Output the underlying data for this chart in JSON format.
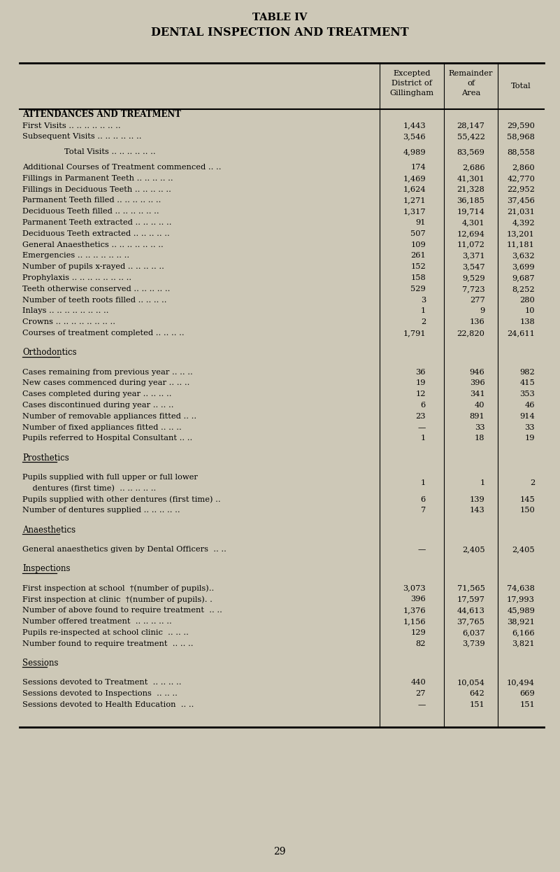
{
  "title1": "TABLE IV",
  "title2": "DENTAL INSPECTION AND TREATMENT",
  "bg_color": "#cdc8b7",
  "rows": [
    {
      "type": "colheader"
    },
    {
      "type": "section_bold",
      "label": "ATTENDANCES AND TREATMENT"
    },
    {
      "type": "data",
      "label": "First Visits .. .. .. .. .. .. ..",
      "v1": "1,443",
      "v2": "28,147",
      "v3": "29,590"
    },
    {
      "type": "data",
      "label": "Subsequent Visits .. .. .. .. .. ..",
      "v1": "3,546",
      "v2": "55,422",
      "v3": "58,968"
    },
    {
      "type": "blank_half"
    },
    {
      "type": "data_c",
      "label": "Total Visits .. .. .. .. .. ..",
      "v1": "4,989",
      "v2": "83,569",
      "v3": "88,558"
    },
    {
      "type": "blank_half"
    },
    {
      "type": "data",
      "label": "Additional Courses of Treatment commenced .. ..",
      "v1": "174",
      "v2": "2,686",
      "v3": "2,860"
    },
    {
      "type": "data",
      "label": "Fillings in Parmanent Teeth .. .. .. .. ..",
      "v1": "1,469",
      "v2": "41,301",
      "v3": "42,770"
    },
    {
      "type": "data",
      "label": "Fillings in Deciduous Teeth .. .. .. .. ..",
      "v1": "1,624",
      "v2": "21,328",
      "v3": "22,952"
    },
    {
      "type": "data",
      "label": "Parmanent Teeth filled .. .. .. .. .. ..",
      "v1": "1,271",
      "v2": "36,185",
      "v3": "37,456"
    },
    {
      "type": "data",
      "label": "Deciduous Teeth filled .. .. .. .. .. ..",
      "v1": "1,317",
      "v2": "19,714",
      "v3": "21,031"
    },
    {
      "type": "data",
      "label": "Parmanent Teeth extracted .. .. .. .. ..",
      "v1": "91",
      "v2": "4,301",
      "v3": "4,392"
    },
    {
      "type": "data",
      "label": "Deciduous Teeth extracted .. .. .. .. ..",
      "v1": "507",
      "v2": "12,694",
      "v3": "13,201"
    },
    {
      "type": "data",
      "label": "General Anaesthetics .. .. .. .. .. .. ..",
      "v1": "109",
      "v2": "11,072",
      "v3": "11,181"
    },
    {
      "type": "data",
      "label": "Emergencies .. .. .. .. .. .. ..",
      "v1": "261",
      "v2": "3,371",
      "v3": "3,632"
    },
    {
      "type": "data",
      "label": "Number of pupils x-rayed .. .. .. .. ..",
      "v1": "152",
      "v2": "3,547",
      "v3": "3,699"
    },
    {
      "type": "data",
      "label": "Prophylaxis .. .. .. .. .. .. .. ..",
      "v1": "158",
      "v2": "9,529",
      "v3": "9,687"
    },
    {
      "type": "data",
      "label": "Teeth otherwise conserved .. .. .. .. ..",
      "v1": "529",
      "v2": "7,723",
      "v3": "8,252"
    },
    {
      "type": "data",
      "label": "Number of teeth roots filled .. .. .. ..",
      "v1": "3",
      "v2": "277",
      "v3": "280"
    },
    {
      "type": "data",
      "label": "Inlays .. .. .. .. .. .. .. ..",
      "v1": "1",
      "v2": "9",
      "v3": "10"
    },
    {
      "type": "data",
      "label": "Crowns .. .. .. .. .. .. .. ..",
      "v1": "2",
      "v2": "136",
      "v3": "138"
    },
    {
      "type": "data",
      "label": "Courses of treatment completed .. .. .. ..",
      "v1": "1,791",
      "v2": "22,820",
      "v3": "24,611"
    },
    {
      "type": "blank"
    },
    {
      "type": "section",
      "label": "Orthodontics"
    },
    {
      "type": "blank"
    },
    {
      "type": "data",
      "label": "Cases remaining from previous year .. .. ..",
      "v1": "36",
      "v2": "946",
      "v3": "982"
    },
    {
      "type": "data",
      "label": "New cases commenced during year .. .. ..",
      "v1": "19",
      "v2": "396",
      "v3": "415"
    },
    {
      "type": "data",
      "label": "Cases completed during year .. .. .. ..",
      "v1": "12",
      "v2": "341",
      "v3": "353"
    },
    {
      "type": "data",
      "label": "Cases discontinued during year .. .. ..",
      "v1": "6",
      "v2": "40",
      "v3": "46"
    },
    {
      "type": "data",
      "label": "Number of removable appliances fitted .. ..",
      "v1": "23",
      "v2": "891",
      "v3": "914"
    },
    {
      "type": "data",
      "label": "Number of fixed appliances fitted .. .. ..",
      "v1": "—",
      "v2": "33",
      "v3": "33"
    },
    {
      "type": "data",
      "label": "Pupils referred to Hospital Consultant .. ..",
      "v1": "1",
      "v2": "18",
      "v3": "19"
    },
    {
      "type": "blank"
    },
    {
      "type": "section",
      "label": "Prosthetics"
    },
    {
      "type": "blank"
    },
    {
      "type": "data2",
      "label": "Pupils supplied with full upper or full lower",
      "label2": "    dentures (first time)  .. .. .. .. ..",
      "v1": "1",
      "v2": "1",
      "v3": "2"
    },
    {
      "type": "data",
      "label": "Pupils supplied with other dentures (first time) ..",
      "v1": "6",
      "v2": "139",
      "v3": "145"
    },
    {
      "type": "data",
      "label": "Number of dentures supplied .. .. .. .. ..",
      "v1": "7",
      "v2": "143",
      "v3": "150"
    },
    {
      "type": "blank"
    },
    {
      "type": "section",
      "label": "Anaesthetics"
    },
    {
      "type": "blank"
    },
    {
      "type": "data",
      "label": "General anaesthetics given by Dental Officers  .. ..",
      "v1": "—",
      "v2": "2,405",
      "v3": "2,405"
    },
    {
      "type": "blank"
    },
    {
      "type": "section",
      "label": "Inspections"
    },
    {
      "type": "blank"
    },
    {
      "type": "data",
      "label": "First inspection at school  †(number of pupils)..",
      "v1": "3,073",
      "v2": "71,565",
      "v3": "74,638"
    },
    {
      "type": "data",
      "label": "First inspection at clinic  †(number of pupils). .",
      "v1": "396",
      "v2": "17,597",
      "v3": "17,993"
    },
    {
      "type": "data",
      "label": "Number of above found to require treatment  .. ..",
      "v1": "1,376",
      "v2": "44,613",
      "v3": "45,989"
    },
    {
      "type": "data",
      "label": "Number offered treatment  .. .. .. .. ..",
      "v1": "1,156",
      "v2": "37,765",
      "v3": "38,921"
    },
    {
      "type": "data",
      "label": "Pupils re-inspected at school clinic  .. .. ..",
      "v1": "129",
      "v2": "6,037",
      "v3": "6,166"
    },
    {
      "type": "data",
      "label": "Number found to require treatment  .. .. ..",
      "v1": "82",
      "v2": "3,739",
      "v3": "3,821"
    },
    {
      "type": "blank"
    },
    {
      "type": "section",
      "label": "Sessions"
    },
    {
      "type": "blank"
    },
    {
      "type": "data",
      "label": "Sessions devoted to Treatment  .. .. .. ..",
      "v1": "440",
      "v2": "10,054",
      "v3": "10,494"
    },
    {
      "type": "data",
      "label": "Sessions devoted to Inspections  .. .. ..",
      "v1": "27",
      "v2": "642",
      "v3": "669"
    },
    {
      "type": "data",
      "label": "Sessions devoted to Health Education  .. ..",
      "v1": "—",
      "v2": "151",
      "v3": "151"
    },
    {
      "type": "blank"
    },
    {
      "type": "blank"
    }
  ],
  "footer": "29"
}
